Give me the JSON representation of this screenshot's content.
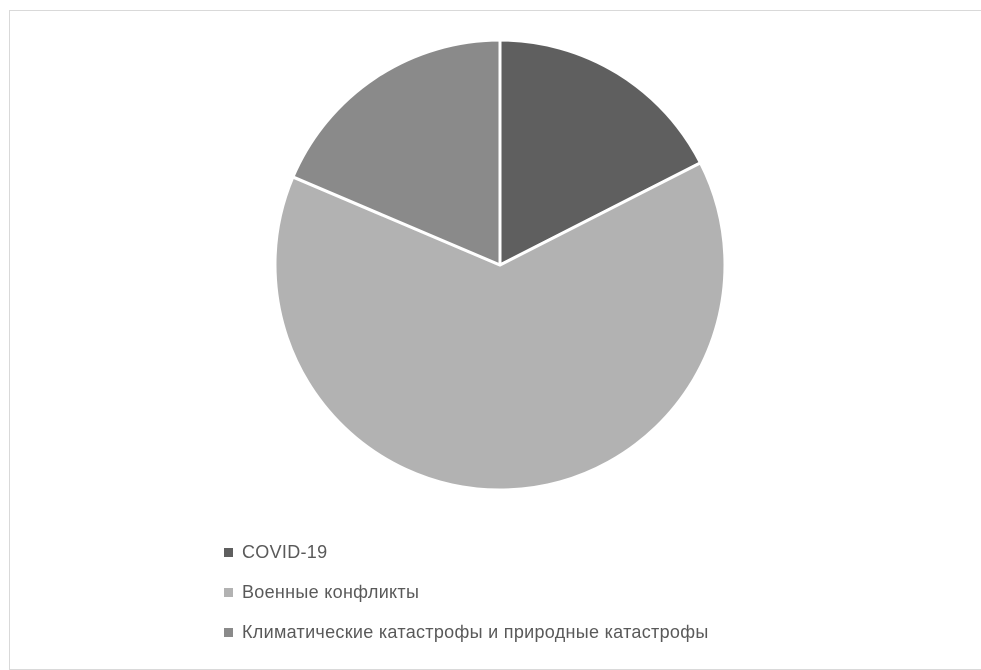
{
  "chart_data": {
    "type": "pie",
    "title": "",
    "categories": [
      "COVID-19",
      "Военные конфликты",
      "Климатические катастрофы и природные катастрофы"
    ],
    "values": [
      17.5,
      63.9,
      18.6
    ],
    "colors": [
      "#5f5f5f",
      "#b2b2b2",
      "#8a8a8a"
    ],
    "slice_border_color": "#ffffff",
    "start_angle_deg": 0,
    "direction": "clockwise",
    "legend_position": "bottom-left"
  }
}
